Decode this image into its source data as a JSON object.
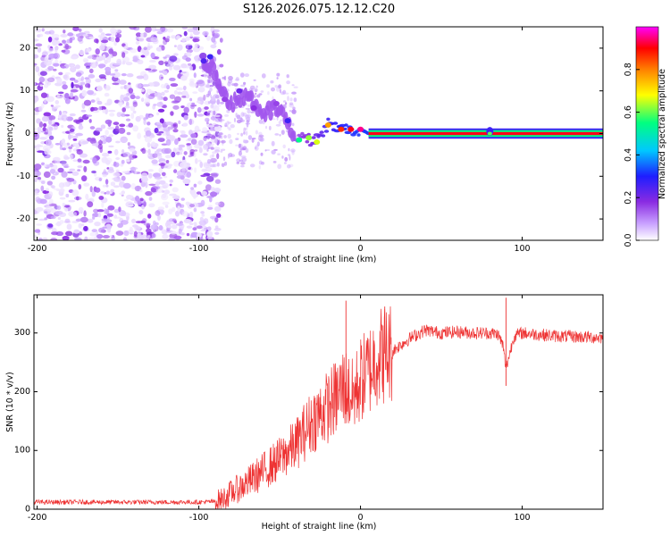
{
  "figure": {
    "title": "S126.2026.075.12.12.C20"
  },
  "chart_data": [
    {
      "type": "heatmap",
      "name": "spectrogram",
      "title": "S126.2026.075.12.12.C20",
      "xlabel": "Height of straight line (km)",
      "ylabel": "Frequency (Hz)",
      "xlim": [
        -202,
        150
      ],
      "ylim": [
        -25,
        25
      ],
      "xticks": [
        -200,
        -100,
        0,
        100
      ],
      "yticks": [
        -20,
        -10,
        0,
        10,
        20
      ],
      "colorbar": {
        "label": "Normalized spectral amplitude",
        "range": [
          0.0,
          1.0
        ],
        "ticks": [
          0.0,
          0.2,
          0.4,
          0.6,
          0.8
        ],
        "tick_labels": [
          "0.0",
          "0.2",
          "0.4",
          "0.6",
          "0.8"
        ],
        "colormap": [
          "#ffffff",
          "#c8a0ff",
          "#8a2be2",
          "#1e1eff",
          "#00c8ff",
          "#00ff80",
          "#ffff00",
          "#ff8000",
          "#ff0000",
          "#ff00ff"
        ]
      },
      "noise_region_x": [
        -202,
        -90
      ],
      "carrier_track": [
        {
          "x": -97,
          "f": 17,
          "amp": 0.35
        },
        {
          "x": -93,
          "f": 16,
          "amp": 0.4
        },
        {
          "x": -88,
          "f": 12,
          "amp": 0.2
        },
        {
          "x": -80,
          "f": 7,
          "amp": 0.2
        },
        {
          "x": -70,
          "f": 9,
          "amp": 0.25
        },
        {
          "x": -60,
          "f": 5,
          "amp": 0.2
        },
        {
          "x": -50,
          "f": 6,
          "amp": 0.2
        },
        {
          "x": -45,
          "f": 2,
          "amp": 0.3
        },
        {
          "x": -40,
          "f": -2,
          "amp": 0.5
        },
        {
          "x": -35,
          "f": -1,
          "amp": 0.6
        },
        {
          "x": -30,
          "f": -2,
          "amp": 0.7
        },
        {
          "x": -25,
          "f": 0,
          "amp": 0.75
        },
        {
          "x": -20,
          "f": 2,
          "amp": 0.85
        },
        {
          "x": -10,
          "f": 1,
          "amp": 0.95
        },
        {
          "x": 0,
          "f": 1,
          "amp": 1.0
        },
        {
          "x": 5,
          "f": 0,
          "amp": 1.0
        },
        {
          "x": 150,
          "f": 0,
          "amp": 1.0
        }
      ],
      "feature_at_x": 80
    },
    {
      "type": "line",
      "name": "snr",
      "xlabel": "Height of straight line (km)",
      "ylabel": "SNR (10 * v/v)",
      "xlim": [
        -202,
        150
      ],
      "ylim": [
        0,
        365
      ],
      "xticks": [
        -200,
        -100,
        0,
        100
      ],
      "yticks": [
        0,
        100,
        200,
        300
      ],
      "series": [
        {
          "name": "SNR",
          "color": "#ee3333",
          "x": [
            -202,
            -150,
            -100,
            -90,
            -85,
            -80,
            -70,
            -60,
            -50,
            -40,
            -30,
            -20,
            -15,
            -10,
            -5,
            0,
            5,
            10,
            20,
            30,
            40,
            50,
            60,
            70,
            80,
            85,
            88,
            90,
            95,
            100,
            120,
            150
          ],
          "y": [
            12,
            12,
            12,
            13,
            18,
            28,
            45,
            65,
            85,
            110,
            150,
            175,
            190,
            210,
            190,
            220,
            235,
            260,
            270,
            290,
            305,
            300,
            302,
            300,
            300,
            298,
            280,
            240,
            295,
            300,
            295,
            292
          ]
        }
      ],
      "spikes": [
        {
          "x": -9,
          "y": 355
        },
        {
          "x": 15,
          "y": 345
        },
        {
          "x": 90,
          "y": 360
        },
        {
          "x": 90,
          "y": 210
        }
      ]
    }
  ]
}
